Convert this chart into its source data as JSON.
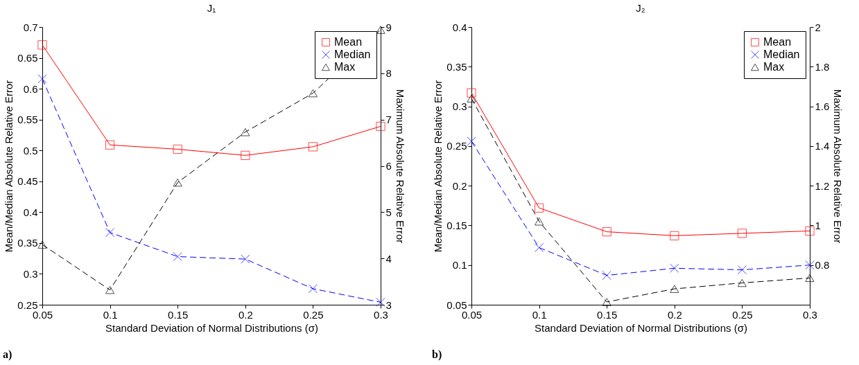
{
  "chart_data": [
    {
      "type": "line",
      "title": "J₁",
      "xlabel": "Standard Deviation of Normal Distributions (σ)",
      "ylabel": "Mean/Median Absolute Relative Error",
      "y2label": "Maximum Absolute Relative Error",
      "x": [
        0.05,
        0.1,
        0.15,
        0.2,
        0.25,
        0.3
      ],
      "xlim": [
        0.05,
        0.3
      ],
      "xticks": [
        0.05,
        0.1,
        0.15,
        0.2,
        0.25,
        0.3
      ],
      "ylim": [
        0.25,
        0.7
      ],
      "yticks": [
        0.25,
        0.3,
        0.35,
        0.4,
        0.45,
        0.5,
        0.55,
        0.6,
        0.65,
        0.7
      ],
      "y2lim": [
        3,
        9
      ],
      "y2ticks": [
        3,
        4,
        5,
        6,
        7,
        8,
        9
      ],
      "grid": false,
      "legend": "top right",
      "series": [
        {
          "name": "Mean",
          "color": "#ff0000",
          "marker": "square",
          "line_style": "solid",
          "values": [
            0.671,
            0.509,
            0.502,
            0.492,
            0.506,
            0.539
          ]
        },
        {
          "name": "Median",
          "color": "#0000ff",
          "marker": "cross",
          "line_style": "dashed",
          "values": [
            0.616,
            0.367,
            0.328,
            0.324,
            0.276,
            0.254
          ]
        },
        {
          "name": "Max",
          "color": "#000000",
          "marker": "triangle",
          "line_style": "dashed",
          "axis": "y2",
          "values": [
            4.3,
            3.32,
            5.64,
            6.73,
            7.57,
            8.94
          ]
        }
      ],
      "annotations": [
        "a)"
      ]
    },
    {
      "type": "line",
      "title": "J₂",
      "xlabel": "Standard Deviation of Normal Distributions (σ)",
      "ylabel": "Mean/Median Absolute Relative Error",
      "y2label": "Maximum Absolute Relative Error",
      "x": [
        0.05,
        0.1,
        0.15,
        0.2,
        0.25,
        0.3
      ],
      "xlim": [
        0.05,
        0.3
      ],
      "xticks": [
        0.05,
        0.1,
        0.15,
        0.2,
        0.25,
        0.3
      ],
      "ylim": [
        0.05,
        0.4
      ],
      "yticks": [
        0.05,
        0.1,
        0.15,
        0.2,
        0.25,
        0.3,
        0.35,
        0.4
      ],
      "y2lim": [
        0.6,
        2
      ],
      "y2ticks": [
        0.8,
        1,
        1.2,
        1.4,
        1.6,
        1.8,
        2
      ],
      "grid": false,
      "legend": "top right",
      "series": [
        {
          "name": "Mean",
          "color": "#ff0000",
          "marker": "square",
          "line_style": "solid",
          "values": [
            0.317,
            0.172,
            0.142,
            0.137,
            0.14,
            0.143
          ]
        },
        {
          "name": "Median",
          "color": "#0000ff",
          "marker": "cross",
          "line_style": "dashed",
          "values": [
            0.256,
            0.122,
            0.087,
            0.096,
            0.094,
            0.1
          ]
        },
        {
          "name": "Max",
          "color": "#000000",
          "marker": "triangle",
          "line_style": "dashed",
          "axis": "y2",
          "values": [
            1.64,
            1.02,
            0.614,
            0.68,
            0.71,
            0.735
          ]
        }
      ],
      "annotations": [
        "b)"
      ]
    }
  ]
}
